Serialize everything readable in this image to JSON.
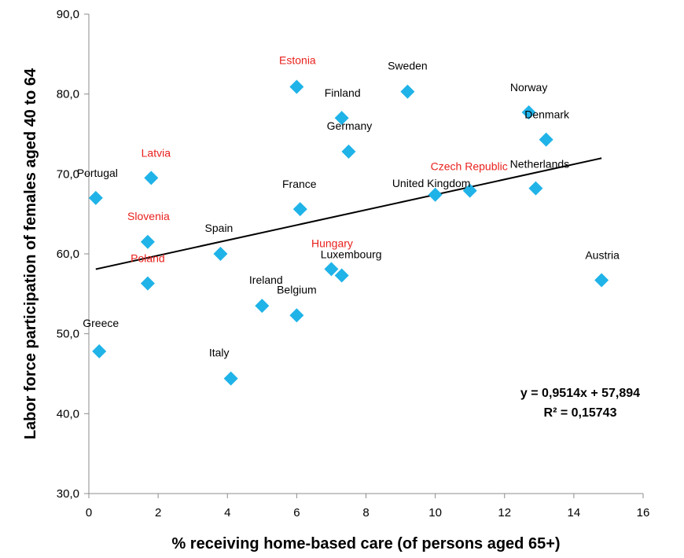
{
  "chart_data": {
    "type": "scatter",
    "title": "",
    "xlabel": "% receiving home-based care (of persons aged 65+)",
    "ylabel": "Labor force participation of females aged 40 to 64",
    "xlim": [
      0,
      16
    ],
    "ylim": [
      30,
      90
    ],
    "x_ticks": [
      "0",
      "2",
      "4",
      "6",
      "8",
      "10",
      "12",
      "14",
      "16"
    ],
    "y_ticks": [
      "30,0",
      "40,0",
      "50,0",
      "60,0",
      "70,0",
      "80,0",
      "90,0"
    ],
    "grid": false,
    "marker_color": "#1fb3e8",
    "label_colors": {
      "default": "#000000",
      "highlight": "#e8211d"
    },
    "points": [
      {
        "label": "Portugal",
        "x": 0.2,
        "y": 67.0,
        "highlight": false
      },
      {
        "label": "Greece",
        "x": 0.3,
        "y": 47.8,
        "highlight": false
      },
      {
        "label": "Latvia",
        "x": 1.8,
        "y": 69.5,
        "highlight": true
      },
      {
        "label": "Slovenia",
        "x": 1.7,
        "y": 61.5,
        "highlight": true
      },
      {
        "label": "Poland",
        "x": 1.7,
        "y": 56.3,
        "highlight": true
      },
      {
        "label": "Spain",
        "x": 3.8,
        "y": 60.0,
        "highlight": false
      },
      {
        "label": "Italy",
        "x": 4.1,
        "y": 44.4,
        "highlight": false
      },
      {
        "label": "Ireland",
        "x": 5.0,
        "y": 53.5,
        "highlight": false
      },
      {
        "label": "Belgium",
        "x": 6.0,
        "y": 52.3,
        "highlight": false
      },
      {
        "label": "Estonia",
        "x": 6.0,
        "y": 80.9,
        "highlight": true
      },
      {
        "label": "France",
        "x": 6.1,
        "y": 65.6,
        "highlight": false
      },
      {
        "label": "Hungary",
        "x": 7.0,
        "y": 58.1,
        "highlight": true
      },
      {
        "label": "Luxembourg",
        "x": 7.3,
        "y": 57.3,
        "highlight": false
      },
      {
        "label": "Finland",
        "x": 7.3,
        "y": 77.0,
        "highlight": false
      },
      {
        "label": "Germany",
        "x": 7.5,
        "y": 72.8,
        "highlight": false
      },
      {
        "label": "Sweden",
        "x": 9.2,
        "y": 80.3,
        "highlight": false
      },
      {
        "label": "United Kingdom",
        "x": 10.0,
        "y": 67.4,
        "highlight": false
      },
      {
        "label": "Czech Republic",
        "x": 11.0,
        "y": 67.9,
        "highlight": true
      },
      {
        "label": "Norway",
        "x": 12.7,
        "y": 77.7,
        "highlight": false
      },
      {
        "label": "Netherlands",
        "x": 12.9,
        "y": 68.2,
        "highlight": false
      },
      {
        "label": "Denmark",
        "x": 13.2,
        "y": 74.3,
        "highlight": false
      },
      {
        "label": "Austria",
        "x": 14.8,
        "y": 56.7,
        "highlight": false
      }
    ],
    "trendline": {
      "slope": 0.9514,
      "intercept": 57.894,
      "x_start": 0.2,
      "x_end": 14.8,
      "color": "#000000",
      "equation": "y = 0,9514x + 57,894",
      "r_squared": "R² = 0,15743"
    }
  }
}
